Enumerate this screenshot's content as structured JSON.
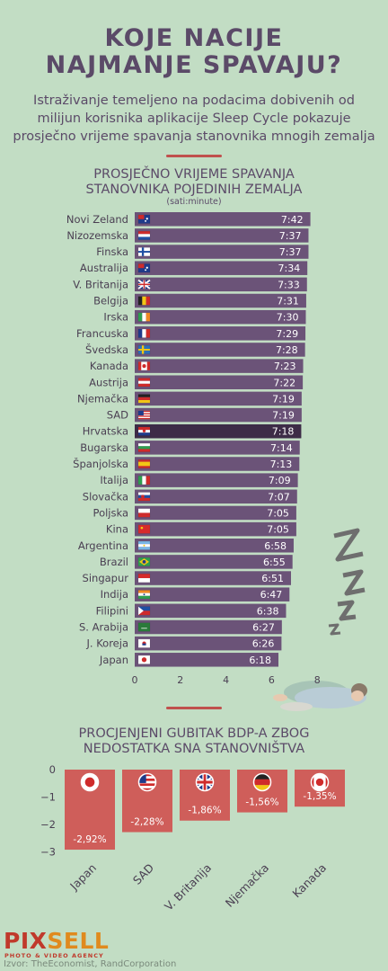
{
  "header": {
    "title_line1": "KOJE NACIJE",
    "title_line2": "NAJMANJE SPAVAJU?",
    "subtitle_line1": "Istraživanje temeljeno na podacima dobivenih od",
    "subtitle_line2": "milijun korisnika aplikacije Sleep Cycle pokazuje",
    "subtitle_line3": "prosječno vrijeme spavanja stanovnika mnogih zemalja"
  },
  "chart1_header": {
    "title_line1": "PROSJEČNO VRIJEME SPAVANJA",
    "title_line2": "STANOVNIKA POJEDINIH ZEMALJA",
    "unit_note": "(sati:minute)"
  },
  "chart2_header": {
    "title_line1": "PROCJENJENI GUBITAK BDP-A ZBOG",
    "title_line2": "NEDOSTATKA SNA STANOVNIŠTVA"
  },
  "colors": {
    "bar": "#6b5378",
    "highlight_bar": "#3d2c47",
    "gdp_bar": "#cf5e5a",
    "background": "#c2ddc4",
    "accent": "#c0504d"
  },
  "chart_data": [
    {
      "type": "bar",
      "orientation": "horizontal",
      "categories": [
        "Novi Zeland",
        "Nizozemska",
        "Finska",
        "Australija",
        "V. Britanija",
        "Belgija",
        "Irska",
        "Francuska",
        "Švedska",
        "Kanada",
        "Austrija",
        "Njemačka",
        "SAD",
        "Hrvatska",
        "Bugarska",
        "Španjolska",
        "Italija",
        "Slovačka",
        "Poljska",
        "Kina",
        "Argentina",
        "Brazil",
        "Singapur",
        "Indija",
        "Filipini",
        "S. Arabija",
        "J. Koreja",
        "Japan"
      ],
      "labels": [
        "7:42",
        "7:37",
        "7:37",
        "7:34",
        "7:33",
        "7:31",
        "7:30",
        "7:29",
        "7:28",
        "7:23",
        "7:22",
        "7:19",
        "7:19",
        "7:18",
        "7:14",
        "7:13",
        "7:09",
        "7:07",
        "7:05",
        "7:05",
        "6:58",
        "6:55",
        "6:51",
        "6:47",
        "6:38",
        "6:27",
        "6:26",
        "6:18"
      ],
      "values": [
        7.7,
        7.617,
        7.617,
        7.567,
        7.55,
        7.517,
        7.5,
        7.483,
        7.467,
        7.383,
        7.367,
        7.317,
        7.317,
        7.3,
        7.233,
        7.217,
        7.15,
        7.117,
        7.083,
        7.083,
        6.967,
        6.917,
        6.85,
        6.783,
        6.633,
        6.45,
        6.433,
        6.3
      ],
      "flags": [
        "nz",
        "nl",
        "fi",
        "au",
        "gb",
        "be",
        "ie",
        "fr",
        "se",
        "ca",
        "at",
        "de",
        "us",
        "hr",
        "bg",
        "es",
        "it",
        "sk",
        "pl",
        "cn",
        "ar",
        "br",
        "sg",
        "in",
        "ph",
        "sa",
        "kr",
        "jp"
      ],
      "highlight": "Hrvatska",
      "xlim": [
        0,
        8
      ],
      "xticks": [
        "0",
        "2",
        "4",
        "6",
        "8"
      ]
    },
    {
      "type": "bar",
      "categories": [
        "Japan",
        "SAD",
        "V. Britanija",
        "Njemačka",
        "Kanada"
      ],
      "values": [
        -2.92,
        -2.28,
        -1.86,
        -1.56,
        -1.35
      ],
      "labels": [
        "-2,92%",
        "-2,28%",
        "-1,86%",
        "-1,56%",
        "-1,35%"
      ],
      "flags": [
        "jp",
        "us",
        "gb",
        "de",
        "ca"
      ],
      "ylim": [
        -3,
        0
      ],
      "yticks": [
        "0",
        "−1",
        "−2",
        "−3"
      ]
    }
  ],
  "footer": {
    "brand_part1": "PIX",
    "brand_part2": "SELL",
    "agency": "PHOTO & VIDEO AGENCY",
    "source": "Izvor: TheEconomist, RandCorporation"
  }
}
